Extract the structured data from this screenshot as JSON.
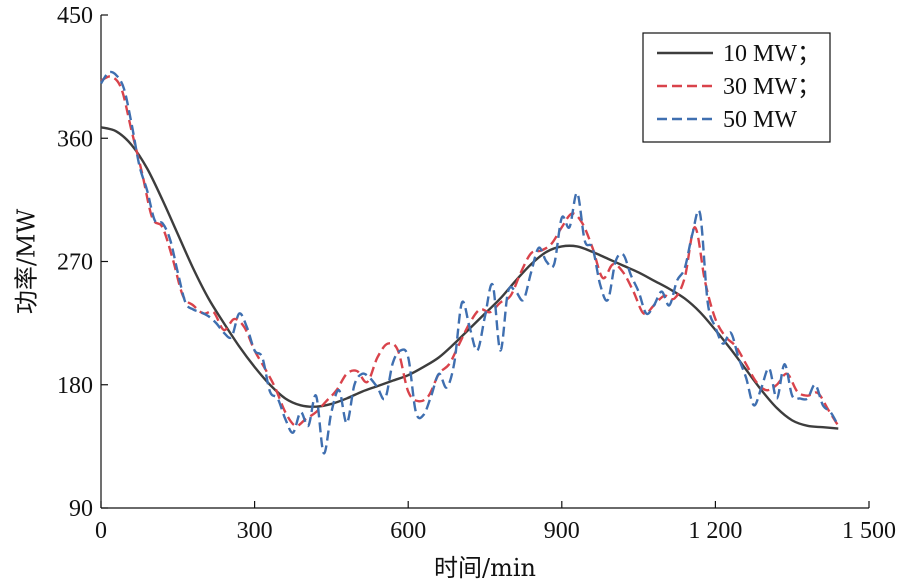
{
  "chart_data": {
    "type": "line",
    "xlabel": "时间/min",
    "ylabel": "功率/MW",
    "xlim": [
      0,
      1500
    ],
    "ylim": [
      90,
      450
    ],
    "xticks": [
      0,
      300,
      600,
      900,
      1200,
      1500
    ],
    "xtick_labels": [
      "0",
      "300",
      "600",
      "900",
      "1 200",
      "1 500"
    ],
    "yticks": [
      90,
      180,
      270,
      360,
      450
    ],
    "ytick_labels": [
      "90",
      "180",
      "270",
      "360",
      "450"
    ],
    "grid": false,
    "legend_position": "top-right",
    "series": [
      {
        "name": "10 MW；",
        "color": "#3d3d3d",
        "dash": "solid",
        "x": [
          0,
          30,
          60,
          90,
          120,
          150,
          180,
          210,
          240,
          270,
          300,
          330,
          360,
          390,
          420,
          450,
          480,
          510,
          540,
          570,
          600,
          630,
          660,
          690,
          720,
          750,
          780,
          810,
          840,
          870,
          900,
          930,
          960,
          990,
          1020,
          1050,
          1080,
          1110,
          1140,
          1170,
          1200,
          1230,
          1260,
          1290,
          1320,
          1350,
          1380,
          1410,
          1440
        ],
        "y": [
          368,
          365,
          355,
          338,
          315,
          290,
          265,
          243,
          225,
          208,
          193,
          180,
          170,
          165,
          164,
          166,
          170,
          175,
          179,
          183,
          187,
          193,
          200,
          210,
          221,
          232,
          243,
          256,
          268,
          277,
          281,
          281,
          277,
          272,
          267,
          262,
          256,
          250,
          243,
          233,
          220,
          206,
          191,
          176,
          163,
          154,
          150,
          149,
          148
        ]
      },
      {
        "name": "30 MW；",
        "color": "#d9434b",
        "dash": "dashed",
        "x": [
          0,
          20,
          40,
          60,
          80,
          100,
          120,
          140,
          160,
          180,
          200,
          220,
          240,
          260,
          280,
          300,
          320,
          340,
          360,
          380,
          400,
          420,
          440,
          460,
          480,
          500,
          520,
          540,
          560,
          580,
          600,
          620,
          640,
          660,
          680,
          700,
          720,
          740,
          760,
          780,
          800,
          820,
          840,
          860,
          880,
          900,
          920,
          940,
          960,
          980,
          1000,
          1020,
          1040,
          1060,
          1080,
          1100,
          1120,
          1140,
          1160,
          1180,
          1200,
          1220,
          1240,
          1260,
          1280,
          1300,
          1320,
          1340,
          1360,
          1380,
          1400,
          1420,
          1440
        ],
        "y": [
          402,
          405,
          396,
          365,
          335,
          302,
          295,
          272,
          245,
          238,
          232,
          233,
          220,
          228,
          222,
          205,
          192,
          178,
          160,
          150,
          155,
          160,
          168,
          176,
          188,
          190,
          182,
          200,
          210,
          205,
          175,
          168,
          172,
          188,
          195,
          210,
          225,
          235,
          233,
          240,
          245,
          262,
          276,
          278,
          283,
          295,
          305,
          298,
          280,
          258,
          268,
          262,
          248,
          232,
          238,
          245,
          243,
          258,
          295,
          255,
          228,
          215,
          208,
          195,
          182,
          176,
          180,
          188,
          175,
          172,
          174,
          162,
          150
        ]
      },
      {
        "name": "50 MW",
        "color": "#3f6fb0",
        "dash": "dashed",
        "x": [
          0,
          15,
          30,
          45,
          60,
          75,
          90,
          105,
          120,
          135,
          150,
          165,
          180,
          195,
          210,
          225,
          240,
          255,
          270,
          285,
          300,
          315,
          330,
          345,
          360,
          375,
          390,
          405,
          420,
          435,
          450,
          465,
          480,
          495,
          510,
          525,
          540,
          555,
          570,
          585,
          600,
          615,
          630,
          645,
          660,
          675,
          690,
          705,
          720,
          735,
          750,
          765,
          780,
          795,
          810,
          825,
          840,
          855,
          870,
          885,
          900,
          915,
          930,
          945,
          960,
          975,
          990,
          1005,
          1020,
          1035,
          1050,
          1065,
          1080,
          1095,
          1110,
          1125,
          1140,
          1155,
          1170,
          1185,
          1200,
          1215,
          1230,
          1245,
          1260,
          1275,
          1290,
          1305,
          1320,
          1335,
          1350,
          1365,
          1380,
          1395,
          1410,
          1425,
          1440
        ],
        "y": [
          400,
          408,
          406,
          396,
          370,
          340,
          322,
          300,
          298,
          286,
          262,
          240,
          235,
          233,
          230,
          225,
          218,
          215,
          232,
          222,
          205,
          200,
          175,
          170,
          155,
          145,
          160,
          150,
          172,
          130,
          160,
          176,
          152,
          180,
          188,
          185,
          178,
          170,
          196,
          205,
          200,
          160,
          158,
          172,
          188,
          178,
          196,
          240,
          222,
          205,
          230,
          253,
          205,
          248,
          248,
          242,
          262,
          280,
          270,
          268,
          302,
          295,
          320,
          285,
          280,
          253,
          242,
          270,
          275,
          260,
          248,
          232,
          238,
          248,
          238,
          256,
          265,
          290,
          305,
          240,
          222,
          210,
          218,
          200,
          185,
          165,
          178,
          192,
          170,
          195,
          172,
          170,
          170,
          180,
          165,
          160,
          150
        ]
      }
    ]
  }
}
